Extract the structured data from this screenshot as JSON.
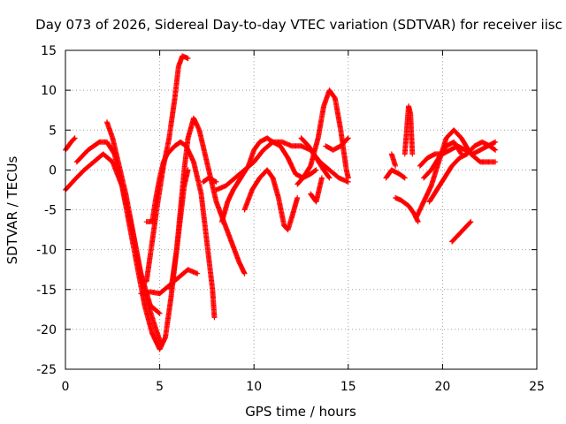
{
  "chart_data": {
    "type": "scatter",
    "title": "Day 073 of 2026, Sidereal Day-to-day VTEC variation (SDTVAR) for receiver iisc",
    "xlabel": "GPS time / hours",
    "ylabel": "SDTVAR / TECUs",
    "xlim": [
      0,
      25
    ],
    "ylim": [
      -25,
      15
    ],
    "x_ticks": [
      0,
      5,
      10,
      15,
      20,
      25
    ],
    "y_ticks": [
      -25,
      -20,
      -15,
      -10,
      -5,
      0,
      5,
      10,
      15
    ],
    "grid": true,
    "marker": "plus",
    "color": "#ff0000",
    "series": [
      {
        "name": "arc-1",
        "points": [
          [
            0,
            2.5
          ],
          [
            0.3,
            3.5
          ],
          [
            0.5,
            4
          ]
        ]
      },
      {
        "name": "arc-2",
        "points": [
          [
            0,
            -2.5
          ],
          [
            0.5,
            -1.2
          ],
          [
            1,
            0
          ],
          [
            1.5,
            1
          ],
          [
            2,
            2
          ],
          [
            2.5,
            1
          ],
          [
            3,
            -2
          ],
          [
            3.5,
            -7
          ],
          [
            4,
            -13
          ],
          [
            4.5,
            -17
          ],
          [
            5,
            -18
          ]
        ]
      },
      {
        "name": "arc-3",
        "points": [
          [
            0.6,
            1
          ],
          [
            1.2,
            2.5
          ],
          [
            1.8,
            3.5
          ],
          [
            2.2,
            3.5
          ],
          [
            2.6,
            2
          ],
          [
            3,
            -2
          ],
          [
            3.4,
            -7
          ],
          [
            3.8,
            -12
          ],
          [
            4.2,
            -17
          ],
          [
            4.6,
            -20.5
          ],
          [
            5,
            -22.5
          ],
          [
            5.3,
            -21
          ],
          [
            5.6,
            -16
          ],
          [
            6,
            -8
          ],
          [
            6.3,
            -2
          ],
          [
            6.5,
            0
          ]
        ]
      },
      {
        "name": "arc-4",
        "points": [
          [
            2.2,
            6
          ],
          [
            2.5,
            4
          ],
          [
            2.8,
            1
          ],
          [
            3.2,
            -3
          ],
          [
            3.6,
            -8
          ],
          [
            4,
            -13
          ],
          [
            4.4,
            -17
          ],
          [
            4.8,
            -20
          ],
          [
            5.1,
            -22
          ]
        ]
      },
      {
        "name": "arc-5",
        "points": [
          [
            4,
            -15.5
          ],
          [
            4.5,
            -15.3
          ],
          [
            5,
            -15.5
          ],
          [
            5.5,
            -14.5
          ],
          [
            6,
            -13.5
          ],
          [
            6.5,
            -12.5
          ],
          [
            7,
            -13
          ]
        ]
      },
      {
        "name": "arc-6",
        "points": [
          [
            4.3,
            -14
          ],
          [
            4.6,
            -9
          ],
          [
            4.9,
            -4
          ],
          [
            5.2,
            0.5
          ],
          [
            5.5,
            4
          ],
          [
            5.8,
            9
          ],
          [
            6,
            13
          ],
          [
            6.2,
            14.3
          ],
          [
            6.5,
            14
          ]
        ]
      },
      {
        "name": "arc-7",
        "points": [
          [
            4.3,
            -6.5
          ],
          [
            4.6,
            -6.5
          ],
          [
            4.8,
            -3.5
          ],
          [
            5,
            -1
          ],
          [
            5.2,
            1
          ],
          [
            5.4,
            2
          ],
          [
            5.8,
            3
          ],
          [
            6.1,
            3.5
          ],
          [
            6.4,
            3
          ],
          [
            6.8,
            1
          ],
          [
            7.2,
            -3
          ],
          [
            7.5,
            -9
          ],
          [
            7.8,
            -15
          ],
          [
            7.9,
            -18.5
          ]
        ]
      },
      {
        "name": "arc-8",
        "points": [
          [
            5.6,
            -15
          ],
          [
            5.9,
            -10
          ],
          [
            6.1,
            -5
          ],
          [
            6.3,
            0
          ],
          [
            6.5,
            4
          ],
          [
            6.8,
            6.5
          ],
          [
            7.1,
            5
          ],
          [
            7.4,
            2
          ],
          [
            7.7,
            -1
          ],
          [
            8,
            -4
          ],
          [
            8.4,
            -6.5
          ],
          [
            8.8,
            -9
          ],
          [
            9.2,
            -11.5
          ],
          [
            9.5,
            -13
          ]
        ]
      },
      {
        "name": "arc-9",
        "points": [
          [
            7.3,
            -1.5
          ],
          [
            7.6,
            -1
          ],
          [
            8,
            -1.5
          ]
        ]
      },
      {
        "name": "arc-10",
        "points": [
          [
            8,
            -2.5
          ],
          [
            8.5,
            -2
          ],
          [
            9,
            -1
          ],
          [
            9.5,
            0
          ],
          [
            10,
            1
          ],
          [
            10.5,
            2.5
          ],
          [
            11,
            3.5
          ],
          [
            11.5,
            3.5
          ],
          [
            12,
            3
          ],
          [
            12.5,
            3
          ],
          [
            13,
            2.5
          ],
          [
            13.5,
            1
          ],
          [
            14,
            0
          ],
          [
            14.5,
            -1
          ],
          [
            15,
            -1.5
          ]
        ]
      },
      {
        "name": "arc-11",
        "points": [
          [
            8.3,
            -6.5
          ],
          [
            8.6,
            -4
          ],
          [
            8.9,
            -2.5
          ],
          [
            9.3,
            -1
          ],
          [
            9.7,
            0.5
          ],
          [
            10,
            2.5
          ],
          [
            10.3,
            3.5
          ],
          [
            10.7,
            4
          ],
          [
            11,
            3.5
          ],
          [
            11.4,
            3
          ],
          [
            11.8,
            1.5
          ],
          [
            12.2,
            -0.5
          ],
          [
            12.6,
            -1
          ],
          [
            13,
            -0.5
          ],
          [
            13.3,
            0
          ]
        ]
      },
      {
        "name": "arc-12",
        "points": [
          [
            9.5,
            -5
          ],
          [
            9.9,
            -2.5
          ],
          [
            10.3,
            -1
          ],
          [
            10.7,
            0
          ],
          [
            11,
            -1
          ],
          [
            11.3,
            -3.5
          ],
          [
            11.6,
            -7
          ],
          [
            11.8,
            -7.5
          ],
          [
            12,
            -6
          ],
          [
            12.3,
            -3.5
          ]
        ]
      },
      {
        "name": "arc-13",
        "points": [
          [
            12.3,
            -1.8
          ],
          [
            12.6,
            -1
          ],
          [
            13,
            0.5
          ],
          [
            13.4,
            4
          ],
          [
            13.7,
            8
          ],
          [
            14,
            10
          ],
          [
            14.3,
            9
          ],
          [
            14.6,
            5
          ],
          [
            14.9,
            0
          ],
          [
            15,
            -1
          ]
        ]
      },
      {
        "name": "arc-14",
        "points": [
          [
            12.5,
            4
          ],
          [
            12.9,
            3
          ],
          [
            13.3,
            1.5
          ],
          [
            13.7,
            0
          ],
          [
            14,
            -1
          ]
        ]
      },
      {
        "name": "arc-15",
        "points": [
          [
            13.8,
            3
          ],
          [
            14.2,
            2.5
          ],
          [
            14.6,
            3
          ],
          [
            15,
            4
          ]
        ]
      },
      {
        "name": "arc-16",
        "points": [
          [
            13,
            -3
          ],
          [
            13.3,
            -4
          ],
          [
            13.6,
            -1
          ]
        ]
      },
      {
        "name": "arc-17",
        "points": [
          [
            17,
            -1
          ],
          [
            17.3,
            0
          ],
          [
            17.7,
            -0.5
          ],
          [
            18,
            -1
          ]
        ]
      },
      {
        "name": "arc-18",
        "points": [
          [
            17.3,
            2
          ],
          [
            17.5,
            0.5
          ]
        ]
      },
      {
        "name": "arc-19",
        "points": [
          [
            17.5,
            -3.5
          ],
          [
            17.8,
            -3.8
          ],
          [
            18.2,
            -4.5
          ],
          [
            18.5,
            -5.5
          ],
          [
            18.7,
            -6.5
          ]
        ]
      },
      {
        "name": "arc-20",
        "points": [
          [
            18,
            2
          ],
          [
            18.1,
            5
          ],
          [
            18.2,
            8
          ],
          [
            18.3,
            7
          ],
          [
            18.4,
            2
          ]
        ]
      },
      {
        "name": "arc-21",
        "points": [
          [
            18.6,
            -6
          ],
          [
            19,
            -4
          ],
          [
            19.4,
            -2
          ],
          [
            19.8,
            1
          ],
          [
            20.2,
            4
          ],
          [
            20.6,
            5
          ],
          [
            21,
            4
          ],
          [
            21.5,
            2
          ],
          [
            22,
            1
          ],
          [
            22.5,
            1
          ],
          [
            22.8,
            1
          ]
        ]
      },
      {
        "name": "arc-22",
        "points": [
          [
            18.8,
            0.5
          ],
          [
            19.2,
            1.5
          ],
          [
            19.6,
            2
          ],
          [
            20,
            2
          ],
          [
            20.4,
            2.5
          ],
          [
            20.8,
            3
          ],
          [
            21.2,
            2.5
          ],
          [
            21.6,
            2
          ],
          [
            22,
            2.5
          ],
          [
            22.4,
            3
          ],
          [
            22.8,
            3.5
          ]
        ]
      },
      {
        "name": "arc-23",
        "points": [
          [
            19,
            -1
          ],
          [
            19.4,
            0
          ],
          [
            19.8,
            1.5
          ],
          [
            20.2,
            3
          ],
          [
            20.6,
            3.5
          ],
          [
            21,
            2
          ]
        ]
      },
      {
        "name": "arc-24",
        "points": [
          [
            19.3,
            -4
          ],
          [
            19.7,
            -2.5
          ],
          [
            20.1,
            -1
          ],
          [
            20.5,
            0.5
          ],
          [
            20.9,
            1.5
          ],
          [
            21.3,
            2
          ],
          [
            21.7,
            3
          ],
          [
            22.1,
            3.5
          ],
          [
            22.5,
            3
          ],
          [
            22.8,
            2.5
          ]
        ]
      },
      {
        "name": "arc-25",
        "points": [
          [
            20.5,
            -9
          ],
          [
            20.9,
            -8
          ],
          [
            21.3,
            -7
          ],
          [
            21.5,
            -6.5
          ]
        ]
      }
    ]
  }
}
